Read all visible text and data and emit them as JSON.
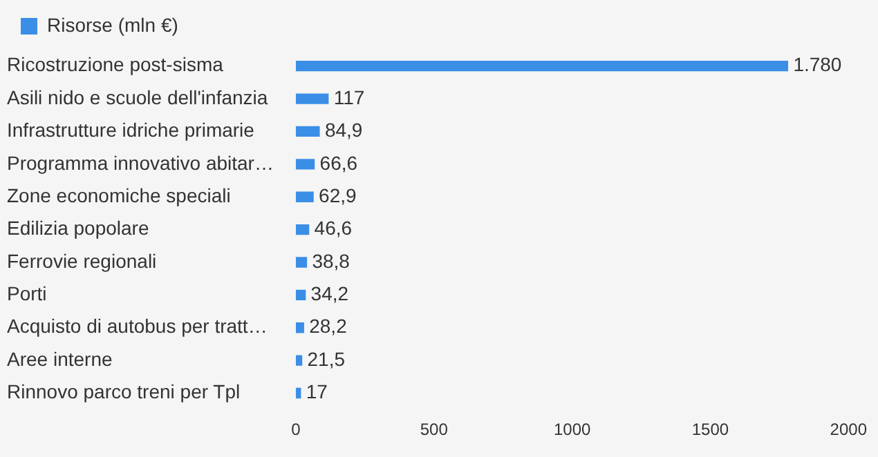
{
  "chart_data": {
    "type": "bar",
    "orientation": "horizontal",
    "legend": "top left",
    "grid": false,
    "categories": [
      "Ricostruzione post-sisma",
      "Asili nido e scuole dell'infanzia",
      "Infrastrutture idriche primarie",
      "Programma innovativo abitar…",
      "Zone economiche speciali",
      "Edilizia popolare",
      "Ferrovie regionali",
      "Porti",
      "Acquisto di autobus per tratt…",
      "Aree interne",
      "Rinnovo parco treni per Tpl"
    ],
    "series": [
      {
        "name": "Risorse (mln €)",
        "color": "#3a8ee6",
        "values": [
          1780,
          117,
          84.9,
          66.6,
          62.9,
          46.6,
          38.8,
          34.2,
          28.2,
          21.5,
          17
        ],
        "value_labels": [
          "1.780",
          "117",
          "84,9",
          "66,6",
          "62,9",
          "46,6",
          "38,8",
          "34,2",
          "28,2",
          "21,5",
          "17"
        ]
      }
    ],
    "xlim": [
      0,
      2000
    ],
    "xticks": [
      0,
      500,
      1000,
      1500,
      2000
    ]
  }
}
